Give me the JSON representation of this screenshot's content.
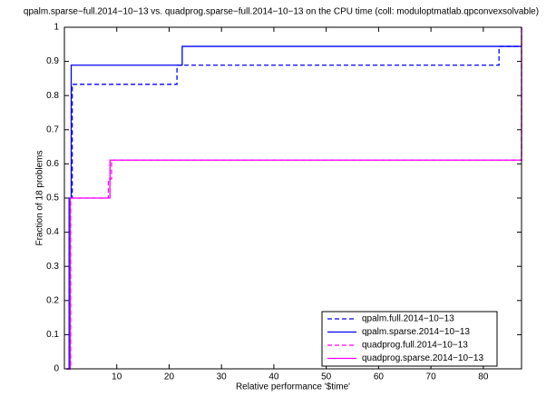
{
  "chart_data": {
    "type": "step",
    "title": "qpalm.sparse−full.2014−10−13 vs. quadprog.sparse−full.2014−10−13 on the CPU time (coll: moduloptmatlab.qpconvexsolvable)",
    "x_label": "Relative performance '$time'",
    "y_label": "Fraction of 18 problems",
    "xlim": [
      0,
      87.3
    ],
    "ylim": [
      0,
      1
    ],
    "xticks": [
      10,
      20,
      30,
      40,
      50,
      60,
      70,
      80
    ],
    "yticks": [
      0,
      0.1,
      0.2,
      0.3,
      0.4,
      0.5,
      0.6,
      0.7,
      0.8,
      0.9,
      1
    ],
    "legend": "lower right",
    "series": [
      {
        "name": "qpalm.full.2014−10−13",
        "color": "#0000ff",
        "dash": true,
        "x": [
          0.4,
          1.0,
          1.5,
          21.5,
          83,
          87.3
        ],
        "values": [
          0,
          0.5,
          0.833,
          0.889,
          0.944,
          0.944
        ]
      },
      {
        "name": "qpalm.sparse.2014−10−13",
        "color": "#0000ff",
        "dash": false,
        "x": [
          0.4,
          0.9,
          1.3,
          22.5,
          87.3
        ],
        "values": [
          0,
          0.5,
          0.889,
          0.944,
          0.944
        ]
      },
      {
        "name": "quadprog.full.2014−10−13",
        "color": "#ff00ff",
        "dash": true,
        "x": [
          0.4,
          1.2,
          8.4,
          9.0,
          87.3,
          87.3
        ],
        "values": [
          0,
          0.5,
          0.556,
          0.611,
          0.611,
          1
        ]
      },
      {
        "name": "quadprog.sparse.2014−10−13",
        "color": "#ff00ff",
        "dash": false,
        "x": [
          0.4,
          1.1,
          8.7,
          87.3,
          87.3
        ],
        "values": [
          0,
          0.5,
          0.611,
          0.611,
          1
        ]
      }
    ]
  }
}
